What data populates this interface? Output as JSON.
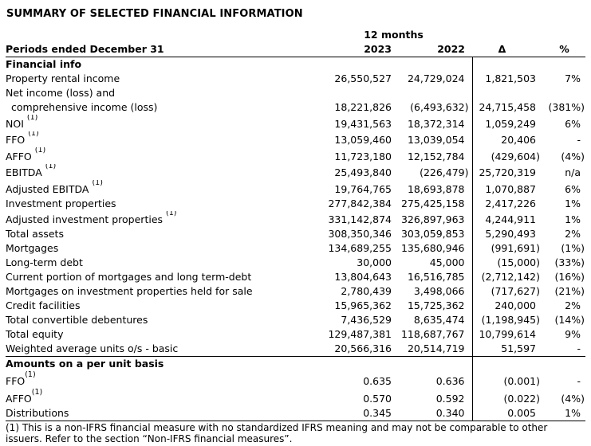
{
  "title": "SUMMARY OF SELECTED FINANCIAL INFORMATION",
  "table": {
    "span_header": "12 months",
    "columns": [
      "Periods ended December 31",
      "2023",
      "2022",
      "Δ",
      "%"
    ],
    "sections": [
      {
        "heading": "Financial info",
        "rows": [
          {
            "label": "Property rental income",
            "v2023": "26,550,527",
            "v2022": "24,729,024",
            "delta": "1,821,503",
            "pct": "7%"
          },
          {
            "label": "Net income (loss) and",
            "v2023": "",
            "v2022": "",
            "delta": "",
            "pct": ""
          },
          {
            "label": "comprehensive income (loss)",
            "indent": true,
            "v2023": "18,221,826",
            "v2022": "(6,493,632)",
            "delta": "24,715,458",
            "pct": "(381%)"
          },
          {
            "label": "NOI",
            "sup": "(1)",
            "gap": true,
            "v2023": "19,431,563",
            "v2022": "18,372,314",
            "delta": "1,059,249",
            "pct": "6%"
          },
          {
            "label": "FFO",
            "sup": "(1)",
            "gap": true,
            "v2023": "13,059,460",
            "v2022": "13,039,054",
            "delta": "20,406",
            "pct": "-"
          },
          {
            "label": "AFFO",
            "sup": "(1)",
            "gap": true,
            "v2023": "11,723,180",
            "v2022": "12,152,784",
            "delta": "(429,604)",
            "pct": "(4%)"
          },
          {
            "label": "EBITDA",
            "sup": "(1)",
            "gap": true,
            "v2023": "25,493,840",
            "v2022": "(226,479)",
            "delta": "25,720,319",
            "pct": "n/a"
          },
          {
            "label": "Adjusted EBITDA",
            "sup": "(1)",
            "gap": true,
            "v2023": "19,764,765",
            "v2022": "18,693,878",
            "delta": "1,070,887",
            "pct": "6%"
          },
          {
            "label": "Investment properties",
            "v2023": "277,842,384",
            "v2022": "275,425,158",
            "delta": "2,417,226",
            "pct": "1%"
          },
          {
            "label": "Adjusted investment properties",
            "sup": "(1)",
            "gap": true,
            "v2023": "331,142,874",
            "v2022": "326,897,963",
            "delta": "4,244,911",
            "pct": "1%"
          },
          {
            "label": "Total assets",
            "v2023": "308,350,346",
            "v2022": "303,059,853",
            "delta": "5,290,493",
            "pct": "2%"
          },
          {
            "label": "Mortgages",
            "v2023": "134,689,255",
            "v2022": "135,680,946",
            "delta": "(991,691)",
            "pct": "(1%)"
          },
          {
            "label": "Long-term debt",
            "v2023": "30,000",
            "v2022": "45,000",
            "delta": "(15,000)",
            "pct": "(33%)"
          },
          {
            "label": "Current portion of mortgages and long term-debt",
            "v2023": "13,804,643",
            "v2022": "16,516,785",
            "delta": "(2,712,142)",
            "pct": "(16%)"
          },
          {
            "label": "Mortgages on investment properties held for sale",
            "v2023": "2,780,439",
            "v2022": "3,498,066",
            "delta": "(717,627)",
            "pct": "(21%)"
          },
          {
            "label": "Credit facilities",
            "v2023": "15,965,362",
            "v2022": "15,725,362",
            "delta": "240,000",
            "pct": "2%"
          },
          {
            "label": "Total convertible debentures",
            "v2023": "7,436,529",
            "v2022": "8,635,474",
            "delta": "(1,198,945)",
            "pct": "(14%)"
          },
          {
            "label": "Total equity",
            "v2023": "129,487,381",
            "v2022": "118,687,767",
            "delta": "10,799,614",
            "pct": "9%"
          },
          {
            "label": "Weighted average units o/s - basic",
            "v2023": "20,566,316",
            "v2022": "20,514,719",
            "delta": "51,597",
            "pct": "-"
          }
        ]
      },
      {
        "heading": "Amounts on a per unit basis",
        "rows": [
          {
            "label": "FFO",
            "sup": "(1)",
            "gap": false,
            "v2023": "0.635",
            "v2022": "0.636",
            "delta": "(0.001)",
            "pct": "-"
          },
          {
            "label": "AFFO",
            "sup": "(1)",
            "gap": false,
            "v2023": "0.570",
            "v2022": "0.592",
            "delta": "(0.022)",
            "pct": "(4%)"
          },
          {
            "label": "Distributions",
            "v2023": "0.345",
            "v2022": "0.340",
            "delta": "0.005",
            "pct": "1%"
          }
        ]
      }
    ],
    "footnote": "(1) This is a non-IFRS financial measure with no standardized IFRS meaning and may not be comparable to other issuers. Refer to the section “Non-IFRS financial measures”."
  }
}
